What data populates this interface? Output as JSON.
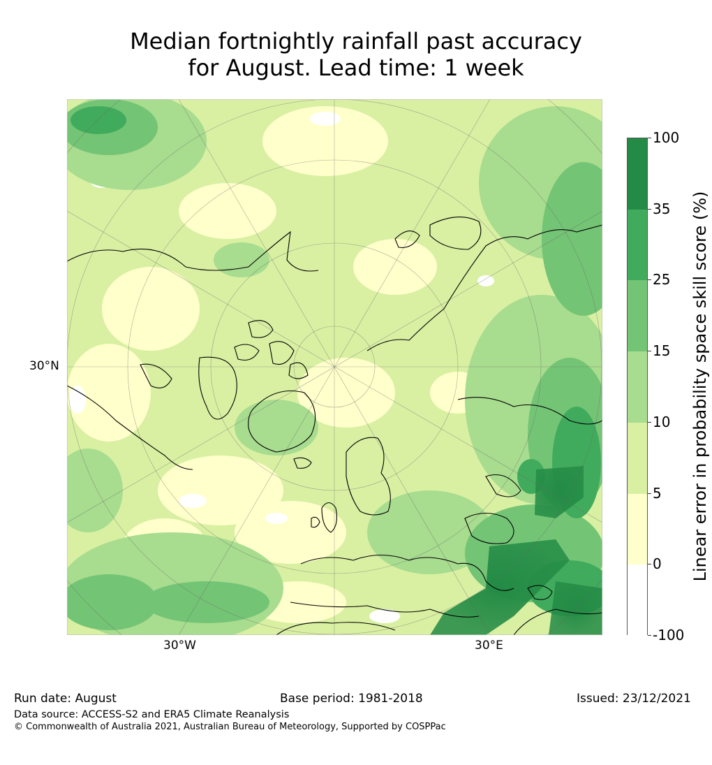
{
  "title": {
    "line1": "Median fortnightly rainfall past accuracy",
    "line2": "for August. Lead time: 1 week"
  },
  "map": {
    "projection": "north polar stereographic",
    "labels": {
      "lat_30N": "30°N",
      "lon_30W": "30°W",
      "lon_30E": "30°E"
    }
  },
  "colorbar": {
    "label": "Linear error in probability space skill score (%)",
    "bounds": [
      "100",
      "35",
      "25",
      "15",
      "10",
      "5",
      "0",
      "-100"
    ],
    "colors": [
      "#238b45",
      "#41ab5d",
      "#74c476",
      "#a8dc8f",
      "#d9f0a3",
      "#ffffcc",
      "#ffffff"
    ]
  },
  "footer": {
    "run_date": "Run date: August",
    "base_period": "Base period: 1981-2018",
    "issued": "Issued: 23/12/2021",
    "data_source": "Data source: ACCESS-S2 and ERA5 Climate Reanalysis",
    "copyright": "© Commonwealth of Australia 2021, Australian Bureau of Meteorology, Supported by COSPPac"
  }
}
